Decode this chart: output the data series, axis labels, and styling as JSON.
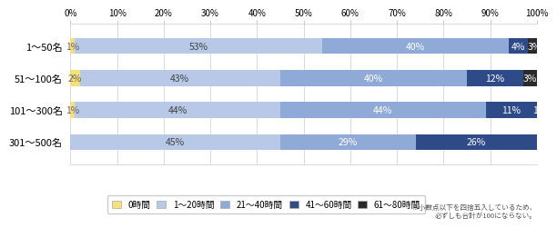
{
  "categories": [
    "1～50名",
    "51～100名",
    "101～300名",
    "301～500名"
  ],
  "series": {
    "0時間": [
      1,
      2,
      1,
      0
    ],
    "1～20時間": [
      53,
      43,
      44,
      45
    ],
    "21～40時間": [
      40,
      40,
      44,
      29
    ],
    "41～60時間": [
      4,
      12,
      11,
      26
    ],
    "61～80時間": [
      3,
      3,
      1,
      0
    ]
  },
  "colors": {
    "0時間": "#f5e07a",
    "1～20時間": "#b8c9e8",
    "21～40時間": "#8faad6",
    "41～60時間": "#2e4a87",
    "61～80時間": "#2a2a2a"
  },
  "text_colors": {
    "0時間": "#666666",
    "1～20時間": "#444444",
    "21～40時間": "#ffffff",
    "41～60時間": "#ffffff",
    "61～80時間": "#ffffff"
  },
  "series_order": [
    "0時間",
    "1～20時間",
    "21～40時間",
    "41～60時間",
    "61～80時間"
  ],
  "footnote": "※小数点以下を四捨五入しているため、\n必ずしも合計が100にならない。",
  "bar_height": 0.5,
  "background_color": "#ffffff",
  "border_color": "#cccccc"
}
